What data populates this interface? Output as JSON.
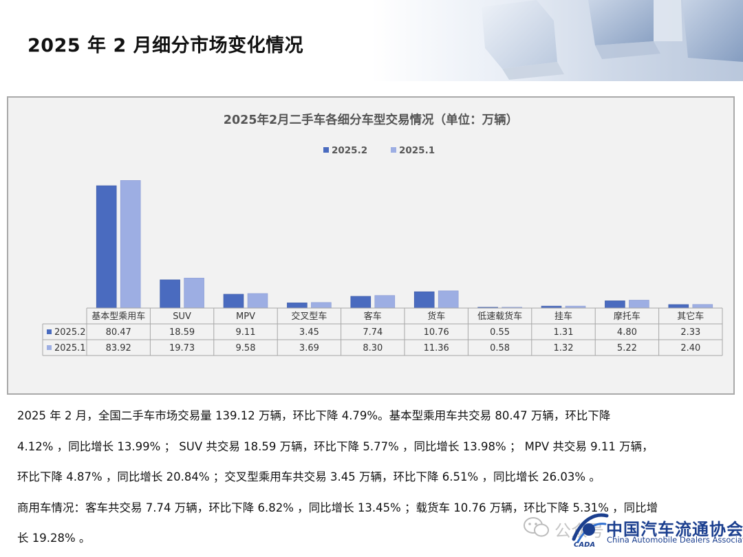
{
  "header": {
    "title": "2025 年 2 月细分市场变化情况"
  },
  "chart_data": {
    "type": "bar",
    "title": "2025年2月二手车各细分车型交易情况（单位：万辆）",
    "categories": [
      "基本型乘用车",
      "SUV",
      "MPV",
      "交叉型车",
      "客车",
      "货车",
      "低速载货车",
      "挂车",
      "摩托车",
      "其它车"
    ],
    "series": [
      {
        "name": "2025.2",
        "values": [
          80.47,
          18.59,
          9.11,
          3.45,
          7.74,
          10.76,
          0.55,
          1.31,
          4.8,
          2.33
        ],
        "labels": [
          "80.47",
          "18.59",
          "9.11",
          "3.45",
          "7.74",
          "10.76",
          "0.55",
          "1.31",
          "4.80",
          "2.33"
        ],
        "color": "#4a6bbf"
      },
      {
        "name": "2025.1",
        "values": [
          83.92,
          19.73,
          9.58,
          3.69,
          8.3,
          11.36,
          0.58,
          1.32,
          5.22,
          2.4
        ],
        "labels": [
          "83.92",
          "19.73",
          "9.58",
          "3.69",
          "8.30",
          "11.36",
          "0.58",
          "1.32",
          "5.22",
          "2.40"
        ],
        "color": "#9daee3"
      }
    ],
    "legend_position": "top-center",
    "data_table": true,
    "grid": false
  },
  "paragraphs": [
    "2025 年 2 月，全国二手车市场交易量 139.12 万辆，环比下降 4.79%。基本型乘用车共交易 80.47 万辆，环比下降",
    "4.12% ，同比增长 13.99% ； SUV 共交易 18.59 万辆，环比下降 5.77% ，同比增长 13.98% ； MPV 共交易 9.11 万辆，",
    "环比下降 4.87% ，同比增长 20.84% ；交叉型乘用车共交易 3.45 万辆，环比下降 6.51% ，同比增长 26.03% 。",
    "商用车情况：客车共交易 7.74 万辆，环比下降 6.82% ，同比增长 13.45% ；载货车 10.76 万辆，环比下降 5.31% ，同比增",
    "长 19.28% 。"
  ],
  "watermark": {
    "text": "公众号"
  },
  "logo": {
    "name_cn": "中国汽车流通协会",
    "name_en": "China Automobile Dealers Association",
    "abbr": "CADA"
  }
}
